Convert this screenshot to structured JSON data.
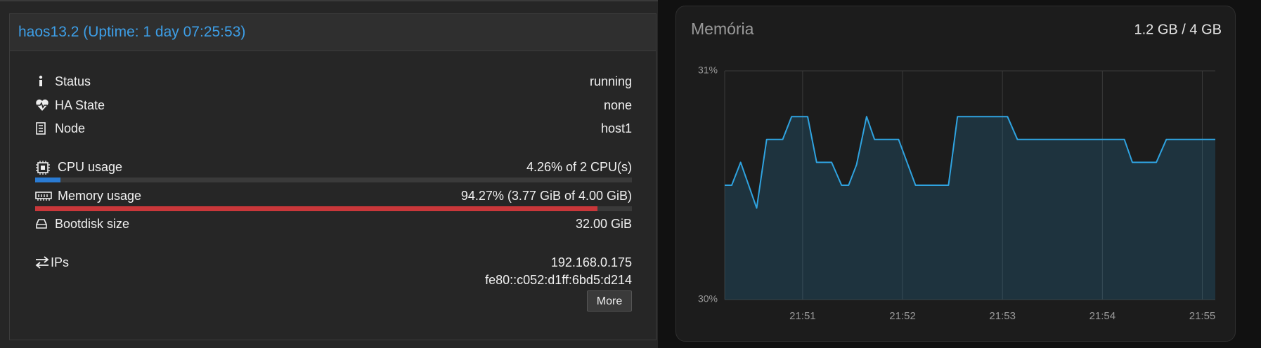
{
  "panel": {
    "header": "haos13.2 (Uptime: 1 day 07:25:53)",
    "rows": [
      {
        "label": "Status",
        "value": "running"
      },
      {
        "label": "HA State",
        "value": "none"
      },
      {
        "label": "Node",
        "value": "host1"
      }
    ],
    "cpu": {
      "label": "CPU usage",
      "value": "4.26% of 2 CPU(s)",
      "percent": 4.26
    },
    "memory": {
      "label": "Memory usage",
      "value": "94.27% (3.77 GiB of 4.00 GiB)",
      "percent": 94.27
    },
    "bootdisk": {
      "label": "Bootdisk size",
      "value": "32.00 GiB"
    },
    "ips": {
      "label": "IPs",
      "values": [
        "192.168.0.175",
        "fe80::c052:d1ff:6bd5:d214"
      ]
    },
    "button": "More"
  },
  "chart_data": {
    "type": "line",
    "title": "Memória",
    "subtitle": "1.2 GB / 4 GB",
    "x": [
      1310.22,
      1310.29,
      1310.38,
      1310.54,
      1310.64,
      1310.8,
      1310.89,
      1311.05,
      1311.14,
      1311.29,
      1311.39,
      1311.46,
      1311.54,
      1311.64,
      1311.72,
      1311.96,
      1312.13,
      1312.46,
      1312.55,
      1313.05,
      1313.15,
      1314.22,
      1314.3,
      1314.54,
      1314.64,
      1315.13
    ],
    "series": [
      {
        "color": "#2fa3e0",
        "values": [
          30.5,
          30.5,
          30.6,
          30.4,
          30.7,
          30.7,
          30.8,
          30.8,
          30.6,
          30.6,
          30.5,
          30.5,
          30.59,
          30.8,
          30.7,
          30.7,
          30.5,
          30.5,
          30.8,
          30.8,
          30.7,
          30.7,
          30.6,
          30.6,
          30.7,
          30.7
        ]
      }
    ],
    "xlim": [
      1310.22,
      1315.13
    ],
    "xticks": [
      {
        "value": 1311,
        "label": "21:51"
      },
      {
        "value": 1312,
        "label": "21:52"
      },
      {
        "value": 1313,
        "label": "21:53"
      },
      {
        "value": 1314,
        "label": "21:54"
      },
      {
        "value": 1315,
        "label": "21:55"
      }
    ],
    "ylim": [
      30,
      31
    ],
    "yticks": [
      {
        "value": 30,
        "label": "30%"
      },
      {
        "value": 31,
        "label": "31%"
      }
    ],
    "grid": true
  }
}
